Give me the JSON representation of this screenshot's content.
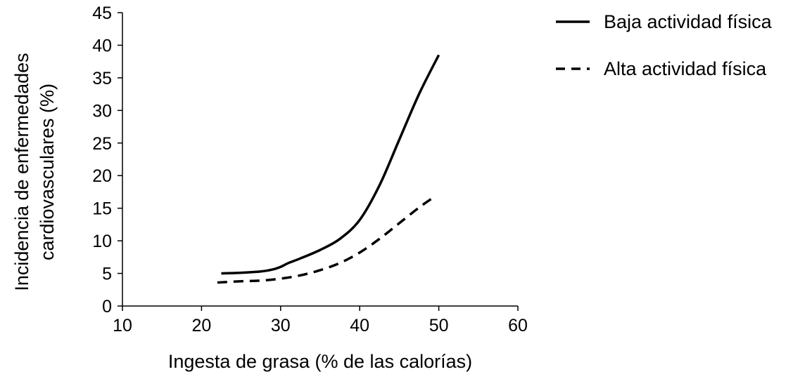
{
  "chart_data": {
    "type": "line",
    "xlabel": "Ingesta de grasa (% de las calorías)",
    "ylabel_lines": [
      "Incidencia de enfermedades",
      "cardiovasculares (%)"
    ],
    "xlim": [
      10,
      60
    ],
    "ylim": [
      0,
      45
    ],
    "x_ticks": [
      10,
      20,
      30,
      40,
      50,
      60
    ],
    "y_ticks": [
      0,
      5,
      10,
      15,
      20,
      25,
      30,
      35,
      40,
      45
    ],
    "grid": false,
    "legend_position": "top-right",
    "series": [
      {
        "name": "Baja actividad física",
        "style": "solid",
        "color": "#000000",
        "x": [
          22.5,
          25,
          27.5,
          29,
          30,
          31,
          32.5,
          35,
          37.5,
          40,
          42.5,
          45,
          47.5,
          50
        ],
        "y": [
          5.0,
          5.1,
          5.3,
          5.6,
          6.0,
          6.6,
          7.3,
          8.6,
          10.3,
          13.2,
          18.5,
          25.5,
          32.5,
          38.5
        ]
      },
      {
        "name": "Alta actividad física",
        "style": "dashed",
        "color": "#000000",
        "x": [
          22,
          25,
          27.5,
          30,
          32.5,
          35,
          37.5,
          40,
          42.5,
          45,
          47.5,
          49.5
        ],
        "y": [
          3.6,
          3.8,
          3.9,
          4.2,
          4.7,
          5.5,
          6.6,
          8.2,
          10.3,
          12.7,
          15.1,
          16.8
        ]
      }
    ]
  }
}
